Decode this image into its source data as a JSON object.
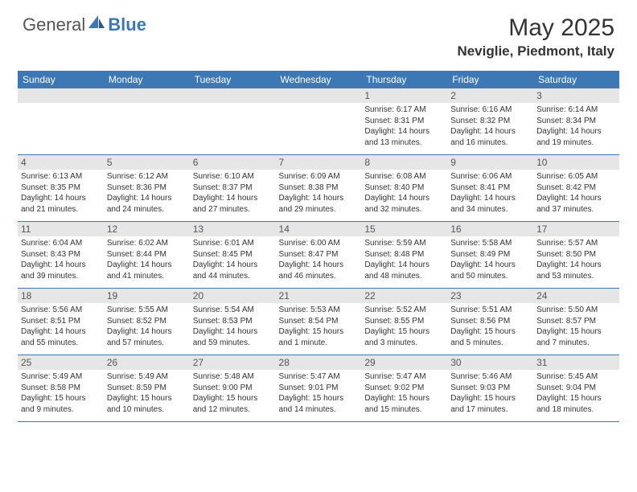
{
  "logo": {
    "general": "General",
    "blue": "Blue"
  },
  "title": "May 2025",
  "location": "Neviglie, Piedmont, Italy",
  "colors": {
    "header_bg": "#3b78b5",
    "header_text": "#ffffff",
    "daynum_bg": "#e6e6e6",
    "border": "#3b78b5"
  },
  "day_headers": [
    "Sunday",
    "Monday",
    "Tuesday",
    "Wednesday",
    "Thursday",
    "Friday",
    "Saturday"
  ],
  "weeks": [
    [
      {
        "num": "",
        "sunrise": "",
        "sunset": "",
        "daylight": ""
      },
      {
        "num": "",
        "sunrise": "",
        "sunset": "",
        "daylight": ""
      },
      {
        "num": "",
        "sunrise": "",
        "sunset": "",
        "daylight": ""
      },
      {
        "num": "",
        "sunrise": "",
        "sunset": "",
        "daylight": ""
      },
      {
        "num": "1",
        "sunrise": "Sunrise: 6:17 AM",
        "sunset": "Sunset: 8:31 PM",
        "daylight": "Daylight: 14 hours and 13 minutes."
      },
      {
        "num": "2",
        "sunrise": "Sunrise: 6:16 AM",
        "sunset": "Sunset: 8:32 PM",
        "daylight": "Daylight: 14 hours and 16 minutes."
      },
      {
        "num": "3",
        "sunrise": "Sunrise: 6:14 AM",
        "sunset": "Sunset: 8:34 PM",
        "daylight": "Daylight: 14 hours and 19 minutes."
      }
    ],
    [
      {
        "num": "4",
        "sunrise": "Sunrise: 6:13 AM",
        "sunset": "Sunset: 8:35 PM",
        "daylight": "Daylight: 14 hours and 21 minutes."
      },
      {
        "num": "5",
        "sunrise": "Sunrise: 6:12 AM",
        "sunset": "Sunset: 8:36 PM",
        "daylight": "Daylight: 14 hours and 24 minutes."
      },
      {
        "num": "6",
        "sunrise": "Sunrise: 6:10 AM",
        "sunset": "Sunset: 8:37 PM",
        "daylight": "Daylight: 14 hours and 27 minutes."
      },
      {
        "num": "7",
        "sunrise": "Sunrise: 6:09 AM",
        "sunset": "Sunset: 8:38 PM",
        "daylight": "Daylight: 14 hours and 29 minutes."
      },
      {
        "num": "8",
        "sunrise": "Sunrise: 6:08 AM",
        "sunset": "Sunset: 8:40 PM",
        "daylight": "Daylight: 14 hours and 32 minutes."
      },
      {
        "num": "9",
        "sunrise": "Sunrise: 6:06 AM",
        "sunset": "Sunset: 8:41 PM",
        "daylight": "Daylight: 14 hours and 34 minutes."
      },
      {
        "num": "10",
        "sunrise": "Sunrise: 6:05 AM",
        "sunset": "Sunset: 8:42 PM",
        "daylight": "Daylight: 14 hours and 37 minutes."
      }
    ],
    [
      {
        "num": "11",
        "sunrise": "Sunrise: 6:04 AM",
        "sunset": "Sunset: 8:43 PM",
        "daylight": "Daylight: 14 hours and 39 minutes."
      },
      {
        "num": "12",
        "sunrise": "Sunrise: 6:02 AM",
        "sunset": "Sunset: 8:44 PM",
        "daylight": "Daylight: 14 hours and 41 minutes."
      },
      {
        "num": "13",
        "sunrise": "Sunrise: 6:01 AM",
        "sunset": "Sunset: 8:45 PM",
        "daylight": "Daylight: 14 hours and 44 minutes."
      },
      {
        "num": "14",
        "sunrise": "Sunrise: 6:00 AM",
        "sunset": "Sunset: 8:47 PM",
        "daylight": "Daylight: 14 hours and 46 minutes."
      },
      {
        "num": "15",
        "sunrise": "Sunrise: 5:59 AM",
        "sunset": "Sunset: 8:48 PM",
        "daylight": "Daylight: 14 hours and 48 minutes."
      },
      {
        "num": "16",
        "sunrise": "Sunrise: 5:58 AM",
        "sunset": "Sunset: 8:49 PM",
        "daylight": "Daylight: 14 hours and 50 minutes."
      },
      {
        "num": "17",
        "sunrise": "Sunrise: 5:57 AM",
        "sunset": "Sunset: 8:50 PM",
        "daylight": "Daylight: 14 hours and 53 minutes."
      }
    ],
    [
      {
        "num": "18",
        "sunrise": "Sunrise: 5:56 AM",
        "sunset": "Sunset: 8:51 PM",
        "daylight": "Daylight: 14 hours and 55 minutes."
      },
      {
        "num": "19",
        "sunrise": "Sunrise: 5:55 AM",
        "sunset": "Sunset: 8:52 PM",
        "daylight": "Daylight: 14 hours and 57 minutes."
      },
      {
        "num": "20",
        "sunrise": "Sunrise: 5:54 AM",
        "sunset": "Sunset: 8:53 PM",
        "daylight": "Daylight: 14 hours and 59 minutes."
      },
      {
        "num": "21",
        "sunrise": "Sunrise: 5:53 AM",
        "sunset": "Sunset: 8:54 PM",
        "daylight": "Daylight: 15 hours and 1 minute."
      },
      {
        "num": "22",
        "sunrise": "Sunrise: 5:52 AM",
        "sunset": "Sunset: 8:55 PM",
        "daylight": "Daylight: 15 hours and 3 minutes."
      },
      {
        "num": "23",
        "sunrise": "Sunrise: 5:51 AM",
        "sunset": "Sunset: 8:56 PM",
        "daylight": "Daylight: 15 hours and 5 minutes."
      },
      {
        "num": "24",
        "sunrise": "Sunrise: 5:50 AM",
        "sunset": "Sunset: 8:57 PM",
        "daylight": "Daylight: 15 hours and 7 minutes."
      }
    ],
    [
      {
        "num": "25",
        "sunrise": "Sunrise: 5:49 AM",
        "sunset": "Sunset: 8:58 PM",
        "daylight": "Daylight: 15 hours and 9 minutes."
      },
      {
        "num": "26",
        "sunrise": "Sunrise: 5:49 AM",
        "sunset": "Sunset: 8:59 PM",
        "daylight": "Daylight: 15 hours and 10 minutes."
      },
      {
        "num": "27",
        "sunrise": "Sunrise: 5:48 AM",
        "sunset": "Sunset: 9:00 PM",
        "daylight": "Daylight: 15 hours and 12 minutes."
      },
      {
        "num": "28",
        "sunrise": "Sunrise: 5:47 AM",
        "sunset": "Sunset: 9:01 PM",
        "daylight": "Daylight: 15 hours and 14 minutes."
      },
      {
        "num": "29",
        "sunrise": "Sunrise: 5:47 AM",
        "sunset": "Sunset: 9:02 PM",
        "daylight": "Daylight: 15 hours and 15 minutes."
      },
      {
        "num": "30",
        "sunrise": "Sunrise: 5:46 AM",
        "sunset": "Sunset: 9:03 PM",
        "daylight": "Daylight: 15 hours and 17 minutes."
      },
      {
        "num": "31",
        "sunrise": "Sunrise: 5:45 AM",
        "sunset": "Sunset: 9:04 PM",
        "daylight": "Daylight: 15 hours and 18 minutes."
      }
    ]
  ]
}
